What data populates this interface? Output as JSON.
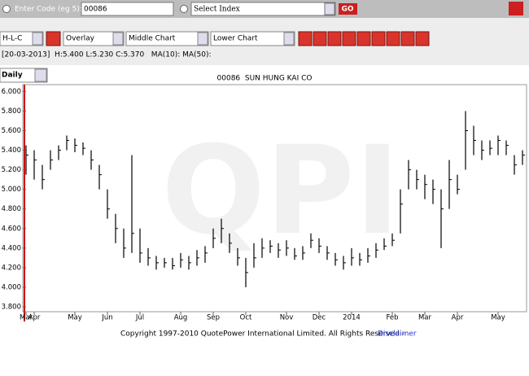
{
  "toolbar": {
    "code_label": "Enter Code (eg 5):",
    "code": "00086",
    "index_select": "Select Index",
    "go": "GO",
    "chart_style": "H-L-C",
    "overlay": "Overlay",
    "middle_chart": "Middle Chart",
    "lower_chart": "Lower Chart",
    "info": "[20-03-2013]  H:5.400 L:5.230 C:5.370   MA(10): MA(50):",
    "period": "Daily"
  },
  "chart_data": {
    "type": "hlc",
    "title": "00086  SUN HUNG KAI CO",
    "watermark": "QPI",
    "categories": [
      "Mar",
      "Apr",
      null,
      null,
      null,
      null,
      "May",
      null,
      null,
      null,
      "Jun",
      null,
      null,
      null,
      "Jul",
      null,
      null,
      null,
      null,
      "Aug",
      null,
      null,
      null,
      "Sep",
      null,
      null,
      null,
      "Oct",
      null,
      null,
      null,
      null,
      "Nov",
      null,
      null,
      null,
      "Dec",
      null,
      null,
      null,
      "2014",
      null,
      null,
      null,
      null,
      "Feb",
      null,
      null,
      null,
      "Mar",
      null,
      null,
      null,
      "Apr",
      null,
      null,
      null,
      null,
      "May",
      null,
      null,
      null
    ],
    "high": [
      5.45,
      5.4,
      5.25,
      5.4,
      5.45,
      5.55,
      5.52,
      5.48,
      5.4,
      5.25,
      5.0,
      4.75,
      4.6,
      5.35,
      4.6,
      4.4,
      4.32,
      4.3,
      4.3,
      4.35,
      4.32,
      4.38,
      4.42,
      4.6,
      4.7,
      4.55,
      4.4,
      4.3,
      4.45,
      4.5,
      4.48,
      4.45,
      4.48,
      4.4,
      4.42,
      4.55,
      4.5,
      4.42,
      4.35,
      4.32,
      4.4,
      4.35,
      4.4,
      4.45,
      4.5,
      4.55,
      5.0,
      5.3,
      5.2,
      5.15,
      5.1,
      5.0,
      5.3,
      5.15,
      5.8,
      5.65,
      5.5,
      5.5,
      5.55,
      5.5,
      5.35,
      5.4
    ],
    "low": [
      5.15,
      5.1,
      5.0,
      5.2,
      5.3,
      5.4,
      5.38,
      5.35,
      5.2,
      5.0,
      4.7,
      4.45,
      4.3,
      4.35,
      4.25,
      4.22,
      4.18,
      4.2,
      4.18,
      4.2,
      4.18,
      4.22,
      4.25,
      4.4,
      4.45,
      4.35,
      4.22,
      4.0,
      4.2,
      4.3,
      4.35,
      4.3,
      4.32,
      4.28,
      4.28,
      4.4,
      4.35,
      4.28,
      4.22,
      4.18,
      4.22,
      4.22,
      4.25,
      4.3,
      4.38,
      4.42,
      4.55,
      5.0,
      5.0,
      4.9,
      4.85,
      4.4,
      4.8,
      4.95,
      5.2,
      5.35,
      5.3,
      5.35,
      5.35,
      5.35,
      5.15,
      5.25
    ],
    "close": [
      5.35,
      5.3,
      5.1,
      5.3,
      5.4,
      5.5,
      5.45,
      5.42,
      5.3,
      5.15,
      4.8,
      4.6,
      4.4,
      4.55,
      4.35,
      4.3,
      4.25,
      4.25,
      4.22,
      4.28,
      4.25,
      4.3,
      4.35,
      4.5,
      4.6,
      4.45,
      4.3,
      4.15,
      4.3,
      4.4,
      4.42,
      4.38,
      4.4,
      4.32,
      4.35,
      4.48,
      4.42,
      4.35,
      4.28,
      4.25,
      4.3,
      4.28,
      4.32,
      4.38,
      4.42,
      4.48,
      4.85,
      5.2,
      5.1,
      5.05,
      5.0,
      4.8,
      5.1,
      5.0,
      5.6,
      5.5,
      5.4,
      5.42,
      5.5,
      5.45,
      5.25,
      5.35
    ],
    "color": "#000000",
    "ylim": [
      3.75,
      6.07
    ],
    "yticks": [
      {
        "value": 3.8,
        "label": "3.800"
      },
      {
        "value": 4,
        "label": "4.000"
      },
      {
        "value": 4.2,
        "label": "4.200"
      },
      {
        "value": 4.4,
        "label": "4.400"
      },
      {
        "value": 4.6,
        "label": "4.600"
      },
      {
        "value": 4.8,
        "label": "4.800"
      },
      {
        "value": 5,
        "label": "5.000"
      },
      {
        "value": 5.2,
        "label": "5.200"
      },
      {
        "value": 5.4,
        "label": "5.400"
      },
      {
        "value": 5.6,
        "label": "5.600"
      },
      {
        "value": 5.8,
        "label": "5.800"
      },
      {
        "value": 6,
        "label": "6.000"
      }
    ]
  },
  "footer": {
    "copyright": "Copyright 1997-2010 QuotePower International Limited. All Rights Reserved -",
    "link": "Disclaimer"
  }
}
